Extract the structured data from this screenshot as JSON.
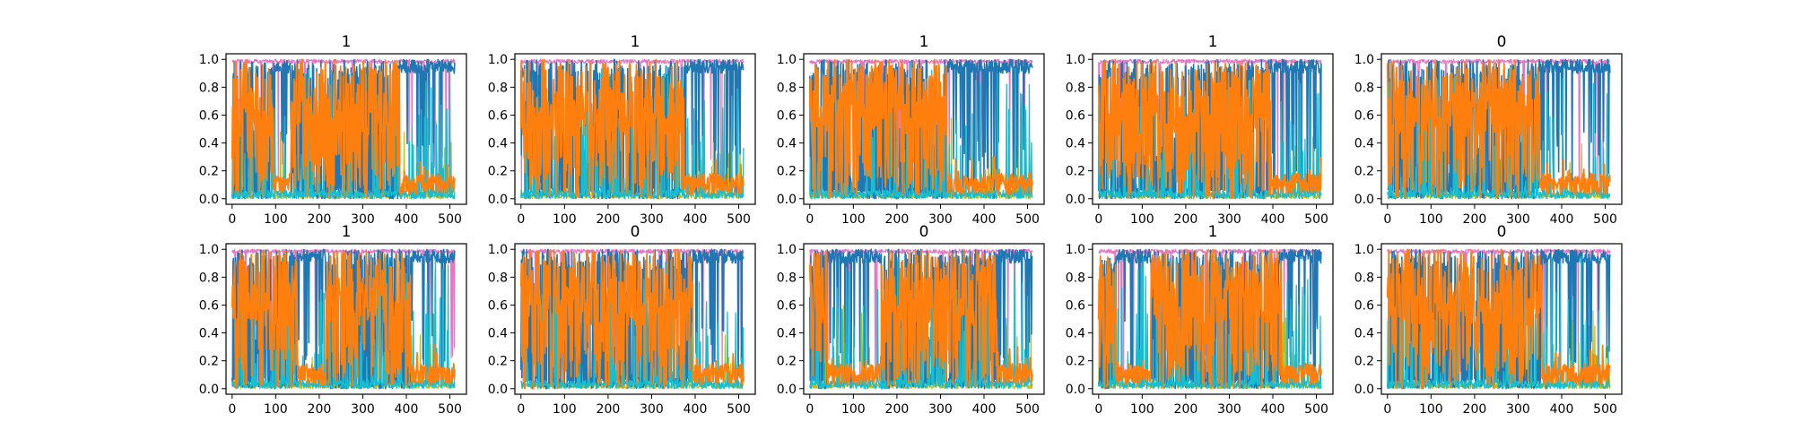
{
  "chart_data": [
    {
      "type": "line",
      "title": "1",
      "xlim": [
        -14,
        538
      ],
      "ylim": [
        -0.04,
        1.04
      ],
      "x_ticks": [
        0,
        100,
        200,
        300,
        400,
        500
      ],
      "y_ticks": [
        0.0,
        0.2,
        0.4,
        0.6,
        0.8,
        1.0
      ],
      "x_tick_labels": [
        "0",
        "100",
        "200",
        "300",
        "400",
        "500"
      ],
      "y_tick_labels": [
        "0.0",
        "0.2",
        "0.4",
        "0.6",
        "0.8",
        "1.0"
      ],
      "grid": false,
      "legend": "none",
      "orange_high_segments": [
        [
          0,
          95
        ],
        [
          135,
          385
        ]
      ],
      "blue_high_segments": [
        [
          95,
          135
        ],
        [
          385,
          511
        ]
      ]
    },
    {
      "type": "line",
      "title": "1",
      "xlim": [
        -14,
        538
      ],
      "ylim": [
        -0.04,
        1.04
      ],
      "x_ticks": [
        0,
        100,
        200,
        300,
        400,
        500
      ],
      "y_ticks": [
        0.0,
        0.2,
        0.4,
        0.6,
        0.8,
        1.0
      ],
      "x_tick_labels": [
        "0",
        "100",
        "200",
        "300",
        "400",
        "500"
      ],
      "y_tick_labels": [
        "0.0",
        "0.2",
        "0.4",
        "0.6",
        "0.8",
        "1.0"
      ],
      "grid": false,
      "legend": "none",
      "orange_high_segments": [
        [
          0,
          375
        ]
      ],
      "blue_high_segments": [
        [
          375,
          511
        ]
      ]
    },
    {
      "type": "line",
      "title": "1",
      "xlim": [
        -14,
        538
      ],
      "ylim": [
        -0.04,
        1.04
      ],
      "x_ticks": [
        0,
        100,
        200,
        300,
        400,
        500
      ],
      "y_ticks": [
        0.0,
        0.2,
        0.4,
        0.6,
        0.8,
        1.0
      ],
      "x_tick_labels": [
        "0",
        "100",
        "200",
        "300",
        "400",
        "500"
      ],
      "y_tick_labels": [
        "0.0",
        "0.2",
        "0.4",
        "0.6",
        "0.8",
        "1.0"
      ],
      "grid": false,
      "legend": "none",
      "orange_high_segments": [
        [
          0,
          315
        ]
      ],
      "blue_high_segments": [
        [
          315,
          511
        ]
      ]
    },
    {
      "type": "line",
      "title": "1",
      "xlim": [
        -14,
        538
      ],
      "ylim": [
        -0.04,
        1.04
      ],
      "x_ticks": [
        0,
        100,
        200,
        300,
        400,
        500
      ],
      "y_ticks": [
        0.0,
        0.2,
        0.4,
        0.6,
        0.8,
        1.0
      ],
      "x_tick_labels": [
        "0",
        "100",
        "200",
        "300",
        "400",
        "500"
      ],
      "y_tick_labels": [
        "0.0",
        "0.2",
        "0.4",
        "0.6",
        "0.8",
        "1.0"
      ],
      "grid": false,
      "legend": "none",
      "orange_high_segments": [
        [
          0,
          395
        ]
      ],
      "blue_high_segments": [
        [
          395,
          511
        ]
      ]
    },
    {
      "type": "line",
      "title": "0",
      "xlim": [
        -14,
        538
      ],
      "ylim": [
        -0.04,
        1.04
      ],
      "x_ticks": [
        0,
        100,
        200,
        300,
        400,
        500
      ],
      "y_ticks": [
        0.0,
        0.2,
        0.4,
        0.6,
        0.8,
        1.0
      ],
      "x_tick_labels": [
        "0",
        "100",
        "200",
        "300",
        "400",
        "500"
      ],
      "y_tick_labels": [
        "0.0",
        "0.2",
        "0.4",
        "0.6",
        "0.8",
        "1.0"
      ],
      "grid": false,
      "legend": "none",
      "orange_high_segments": [
        [
          0,
          350
        ]
      ],
      "blue_high_segments": [
        [
          350,
          511
        ]
      ]
    },
    {
      "type": "line",
      "title": "1",
      "xlim": [
        -14,
        538
      ],
      "ylim": [
        -0.04,
        1.04
      ],
      "x_ticks": [
        0,
        100,
        200,
        300,
        400,
        500
      ],
      "y_ticks": [
        0.0,
        0.2,
        0.4,
        0.6,
        0.8,
        1.0
      ],
      "x_tick_labels": [
        "0",
        "100",
        "200",
        "300",
        "400",
        "500"
      ],
      "y_tick_labels": [
        "0.0",
        "0.2",
        "0.4",
        "0.6",
        "0.8",
        "1.0"
      ],
      "grid": false,
      "legend": "none",
      "orange_high_segments": [
        [
          0,
          150
        ],
        [
          215,
          410
        ]
      ],
      "blue_high_segments": [
        [
          150,
          215
        ],
        [
          410,
          511
        ]
      ]
    },
    {
      "type": "line",
      "title": "0",
      "xlim": [
        -14,
        538
      ],
      "ylim": [
        -0.04,
        1.04
      ],
      "x_ticks": [
        0,
        100,
        200,
        300,
        400,
        500
      ],
      "y_ticks": [
        0.0,
        0.2,
        0.4,
        0.6,
        0.8,
        1.0
      ],
      "x_tick_labels": [
        "0",
        "100",
        "200",
        "300",
        "400",
        "500"
      ],
      "y_tick_labels": [
        "0.0",
        "0.2",
        "0.4",
        "0.6",
        "0.8",
        "1.0"
      ],
      "grid": false,
      "legend": "none",
      "orange_high_segments": [
        [
          0,
          395
        ]
      ],
      "blue_high_segments": [
        [
          395,
          511
        ]
      ]
    },
    {
      "type": "line",
      "title": "0",
      "xlim": [
        -14,
        538
      ],
      "ylim": [
        -0.04,
        1.04
      ],
      "x_ticks": [
        0,
        100,
        200,
        300,
        400,
        500
      ],
      "y_ticks": [
        0.0,
        0.2,
        0.4,
        0.6,
        0.8,
        1.0
      ],
      "x_tick_labels": [
        "0",
        "100",
        "200",
        "300",
        "400",
        "500"
      ],
      "y_tick_labels": [
        "0.0",
        "0.2",
        "0.4",
        "0.6",
        "0.8",
        "1.0"
      ],
      "grid": false,
      "legend": "none",
      "orange_high_segments": [
        [
          0,
          40
        ],
        [
          165,
          430
        ]
      ],
      "blue_high_segments": [
        [
          40,
          165
        ],
        [
          430,
          511
        ]
      ]
    },
    {
      "type": "line",
      "title": "1",
      "xlim": [
        -14,
        538
      ],
      "ylim": [
        -0.04,
        1.04
      ],
      "x_ticks": [
        0,
        100,
        200,
        300,
        400,
        500
      ],
      "y_ticks": [
        0.0,
        0.2,
        0.4,
        0.6,
        0.8,
        1.0
      ],
      "x_tick_labels": [
        "0",
        "100",
        "200",
        "300",
        "400",
        "500"
      ],
      "y_tick_labels": [
        "0.0",
        "0.2",
        "0.4",
        "0.6",
        "0.8",
        "1.0"
      ],
      "grid": false,
      "legend": "none",
      "orange_high_segments": [
        [
          0,
          40
        ],
        [
          120,
          420
        ]
      ],
      "blue_high_segments": [
        [
          40,
          120
        ],
        [
          420,
          511
        ]
      ]
    },
    {
      "type": "line",
      "title": "0",
      "xlim": [
        -14,
        538
      ],
      "ylim": [
        -0.04,
        1.04
      ],
      "x_ticks": [
        0,
        100,
        200,
        300,
        400,
        500
      ],
      "y_ticks": [
        0.0,
        0.2,
        0.4,
        0.6,
        0.8,
        1.0
      ],
      "x_tick_labels": [
        "0",
        "100",
        "200",
        "300",
        "400",
        "500"
      ],
      "y_tick_labels": [
        "0.0",
        "0.2",
        "0.4",
        "0.6",
        "0.8",
        "1.0"
      ],
      "grid": false,
      "legend": "none",
      "orange_high_segments": [
        [
          0,
          355
        ]
      ],
      "blue_high_segments": [
        [
          355,
          511
        ]
      ]
    }
  ],
  "colors": {
    "orange": "#ff7f0e",
    "blue": "#1f77b4",
    "cyan": "#17becf",
    "olive": "#bcbd22",
    "pink": "#e377c2",
    "axis": "#000000",
    "background": "#ffffff"
  }
}
